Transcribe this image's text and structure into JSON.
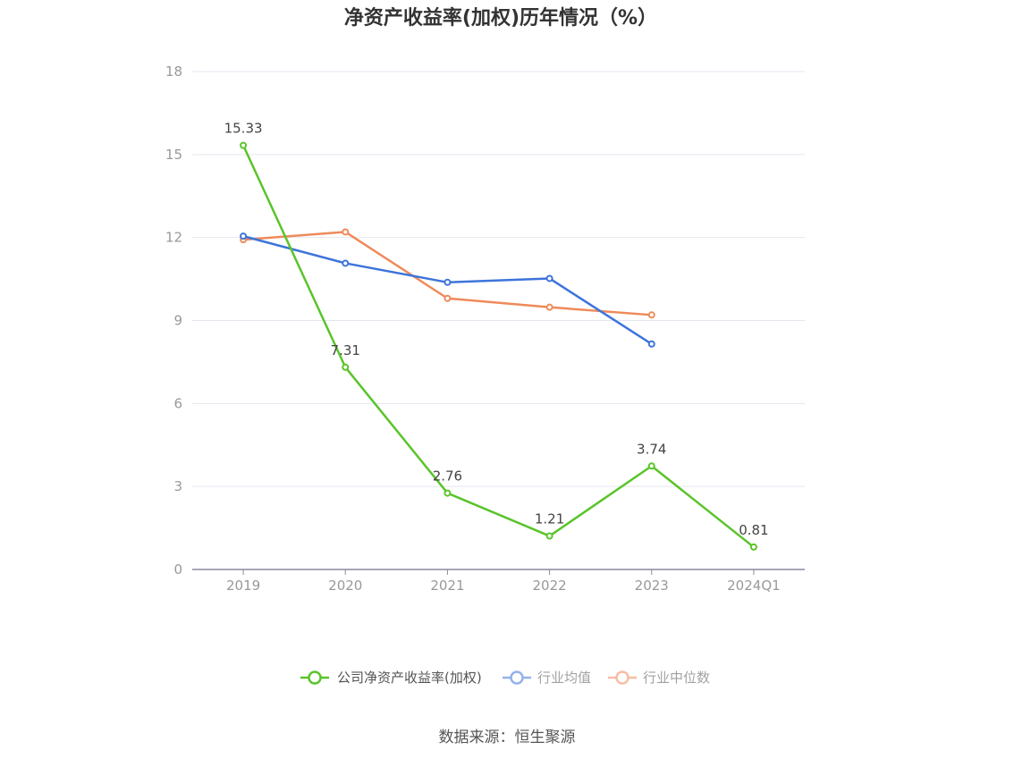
{
  "chart_data": {
    "type": "line",
    "title": "净资产收益率(加权)历年情况（%）",
    "categories": [
      "2019",
      "2020",
      "2021",
      "2022",
      "2023",
      "2024Q1"
    ],
    "ylim": [
      0,
      18
    ],
    "yticks": [
      "0",
      "3",
      "6",
      "9",
      "12",
      "15",
      "18"
    ],
    "grid": true,
    "legend_position": "bottom",
    "series": [
      {
        "name": "公司净资产收益率(加权)",
        "color": "#5ac42a",
        "labeled": true,
        "values": [
          15.33,
          7.31,
          2.76,
          1.21,
          3.74,
          0.81
        ],
        "labels": [
          "15.33",
          "7.31",
          "2.76",
          "1.21",
          "3.74",
          "0.81"
        ]
      },
      {
        "name": "行业均值",
        "color": "#3d74db",
        "labeled": false,
        "values": [
          12.05,
          11.07,
          10.38,
          10.52,
          8.15,
          null
        ]
      },
      {
        "name": "行业中位数",
        "color": "#ef8a5a",
        "labeled": false,
        "values": [
          11.92,
          12.2,
          9.8,
          9.48,
          9.2,
          null
        ]
      }
    ]
  },
  "source_text": "数据来源：恒生聚源"
}
